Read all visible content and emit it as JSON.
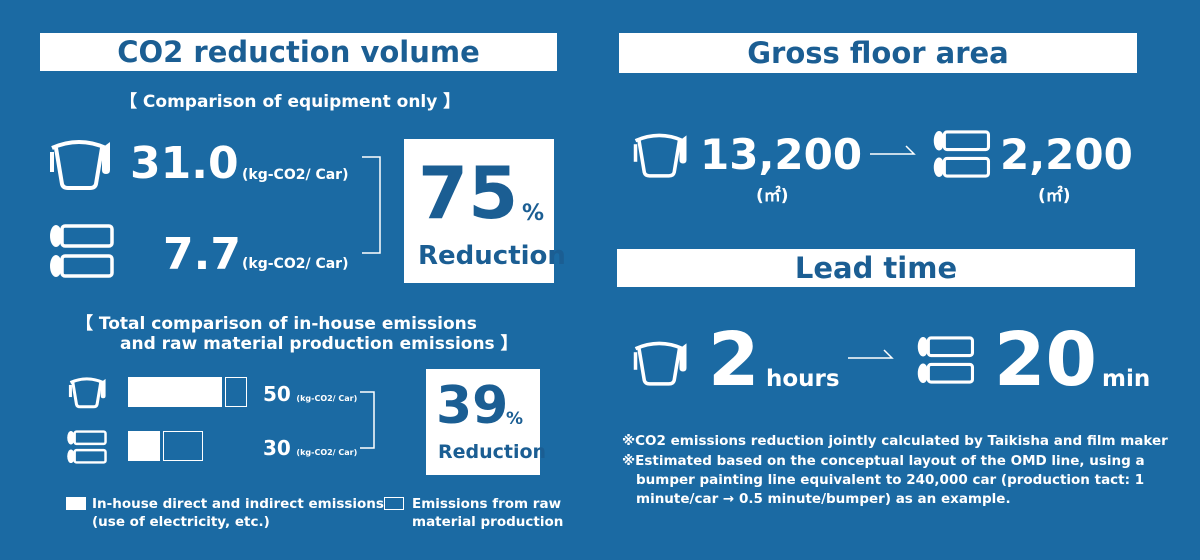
{
  "left": {
    "title": "CO2 reduction volume",
    "equipment": {
      "heading": "【 Comparison of equipment only 】",
      "bucket_value": "31.0",
      "bucket_unit": "(kg-CO2/ Car)",
      "roller_value": "7.7",
      "roller_unit": "(kg-CO2/ Car)",
      "reduction_number": "75",
      "reduction_percent": "%",
      "reduction_label": "Reduction"
    },
    "total": {
      "heading_line1": "【 Total comparison of in-house emissions",
      "heading_line2": "and raw material production emissions 】",
      "bucket_value": "50",
      "bucket_unit": "(kg-CO2/ Car)",
      "roller_value": "30",
      "roller_unit": "(kg-CO2/ Car)",
      "reduction_number": "39",
      "reduction_percent": "%",
      "reduction_label": "Reduction"
    },
    "legend": {
      "filled_label_line1": "In-house direct and indirect emissions",
      "filled_label_line2": "(use of electricity, etc.)",
      "outline_label_line1": "Emissions from raw",
      "outline_label_line2": "material production"
    }
  },
  "right": {
    "floor": {
      "title": "Gross floor area",
      "before_value": "13,200",
      "before_unit": "(㎡)",
      "after_value": "2,200",
      "after_unit": "(㎡)"
    },
    "lead": {
      "title": "Lead time",
      "before_value": "2",
      "before_unit": "hours",
      "after_value": "20",
      "after_unit": "min"
    },
    "notes": {
      "note1": "※CO2 emissions reduction jointly calculated by Taikisha and film maker",
      "note2_line1": "※Estimated based on the conceptual layout of the OMD line, using a",
      "note2_line2": "bumper painting line equivalent to 240,000 car (production tact: 1",
      "note2_line3": "minute/car → 0.5 minute/bumper) as an example."
    }
  },
  "colors": {
    "background": "#1b6aa3",
    "text_on_white": "#1b5e93",
    "foreground": "#ffffff"
  },
  "icons": [
    "paint-bucket-icon",
    "film-roller-icon",
    "arrow-right-icon",
    "bracket-icon"
  ]
}
